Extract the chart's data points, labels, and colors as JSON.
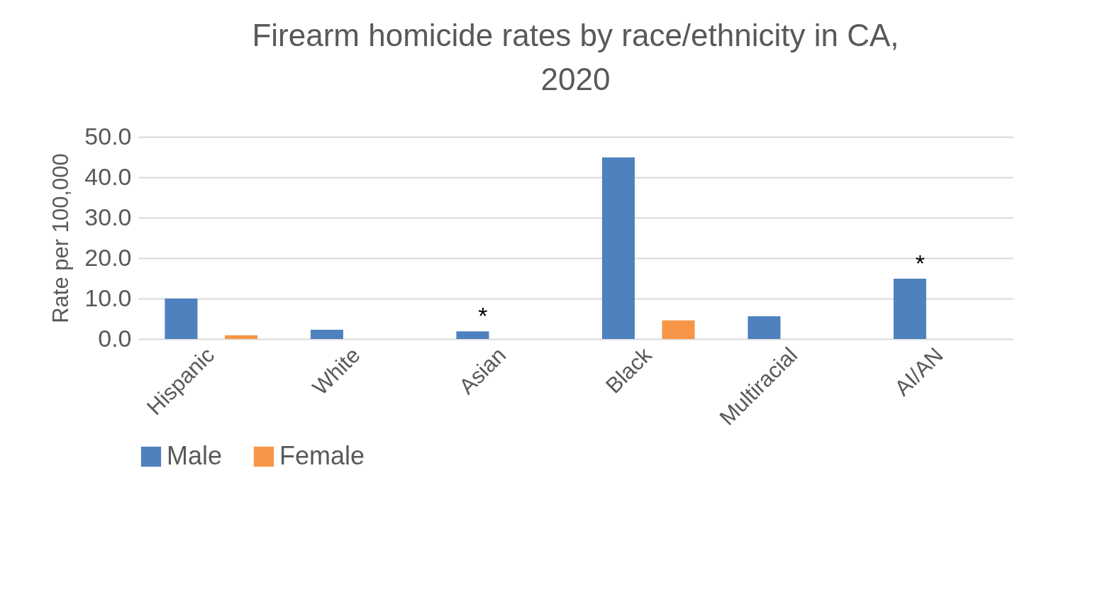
{
  "chart_data": {
    "type": "bar",
    "title": "Firearm homicide rates by race/ethnicity in CA, 2020",
    "ylabel": "Rate per 100,000",
    "categories": [
      "Hispanic",
      "White",
      "Asian",
      "Black",
      "Multiracial",
      "AI/AN"
    ],
    "series": [
      {
        "name": "Male",
        "color": "#4e81bd",
        "values": [
          10.0,
          2.3,
          1.9,
          44.9,
          5.6,
          14.9
        ]
      },
      {
        "name": "Female",
        "color": "#f79646",
        "values": [
          0.9,
          null,
          null,
          4.6,
          null,
          null
        ]
      }
    ],
    "ylim": [
      0,
      50
    ],
    "yticks": [
      {
        "value": 0,
        "label": "0.0"
      },
      {
        "value": 10,
        "label": "10.0"
      },
      {
        "value": 20,
        "label": "20.0"
      },
      {
        "value": 30,
        "label": "30.0"
      },
      {
        "value": 40,
        "label": "40.0"
      },
      {
        "value": 50,
        "label": "50.0"
      }
    ],
    "grid": "y",
    "legend": "bottom",
    "annotations": [
      {
        "text": "*",
        "x": "Asian",
        "y": 1.9
      },
      {
        "text": "*",
        "x": "AI/AN",
        "y": 14.9
      }
    ]
  }
}
